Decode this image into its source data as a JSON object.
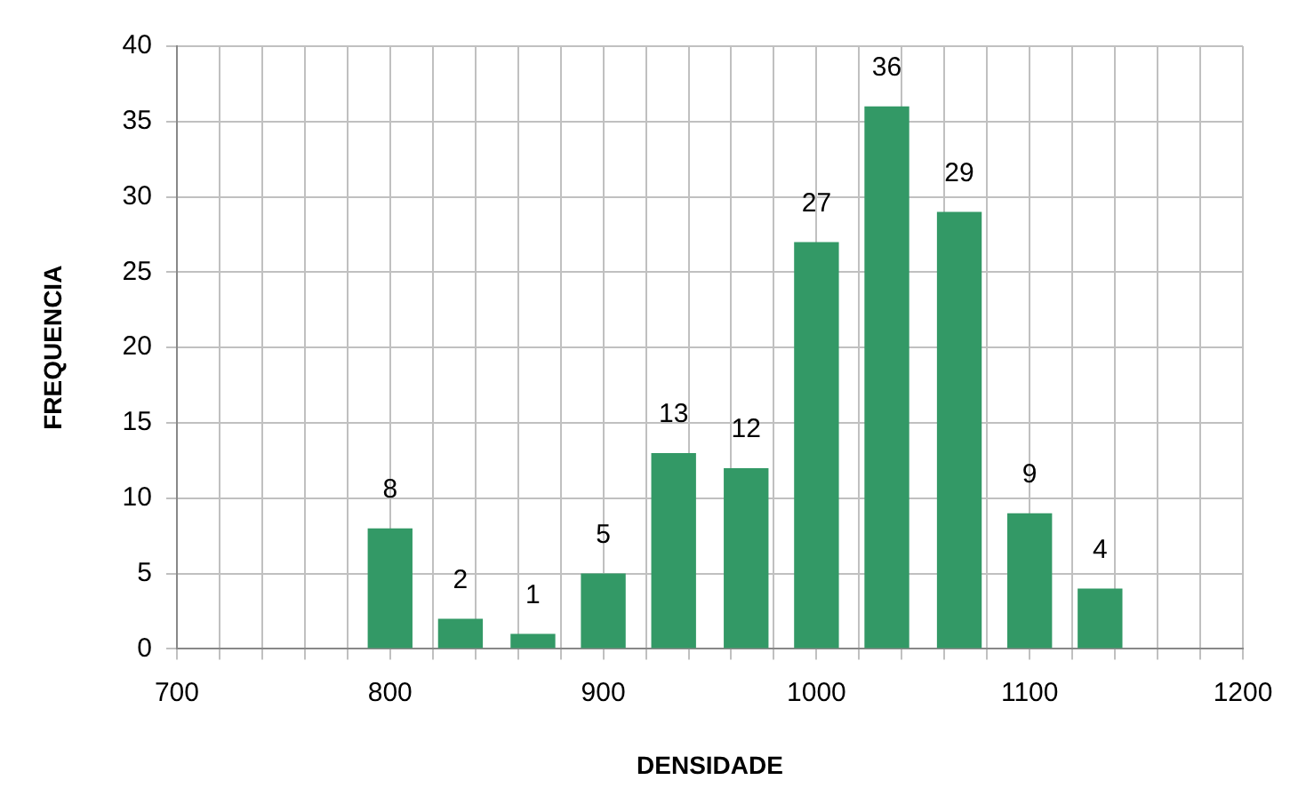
{
  "chart_data": {
    "type": "bar",
    "xlabel": "DENSIDADE",
    "ylabel": "FREQUENCIA",
    "x": [
      800,
      833,
      867,
      900,
      933,
      967,
      1000,
      1033,
      1067,
      1100,
      1133
    ],
    "values": [
      8,
      2,
      1,
      5,
      13,
      12,
      27,
      36,
      29,
      9,
      4
    ],
    "color": "#339966",
    "xlim": [
      700,
      1200
    ],
    "xticks": [
      700,
      {
        "value": 720,
        "label": null
      },
      {
        "value": 740,
        "label": null
      },
      {
        "value": 760,
        "label": null
      },
      {
        "value": 780,
        "label": null
      },
      800,
      {
        "value": 820,
        "label": null
      },
      {
        "value": 840,
        "label": null
      },
      {
        "value": 860,
        "label": null
      },
      {
        "value": 880,
        "label": null
      },
      900,
      {
        "value": 920,
        "label": null
      },
      {
        "value": 940,
        "label": null
      },
      {
        "value": 960,
        "label": null
      },
      {
        "value": 980,
        "label": null
      },
      1000,
      {
        "value": 1020,
        "label": null
      },
      {
        "value": 1040,
        "label": null
      },
      {
        "value": 1060,
        "label": null
      },
      {
        "value": 1080,
        "label": null
      },
      1100,
      {
        "value": 1120,
        "label": null
      },
      {
        "value": 1140,
        "label": null
      },
      {
        "value": 1160,
        "label": null
      },
      {
        "value": 1180,
        "label": null
      },
      1200
    ],
    "ylim": [
      0,
      40
    ],
    "yticks": [
      0,
      5,
      10,
      15,
      20,
      25,
      30,
      35,
      40
    ],
    "grid": true,
    "data_labels": true
  }
}
